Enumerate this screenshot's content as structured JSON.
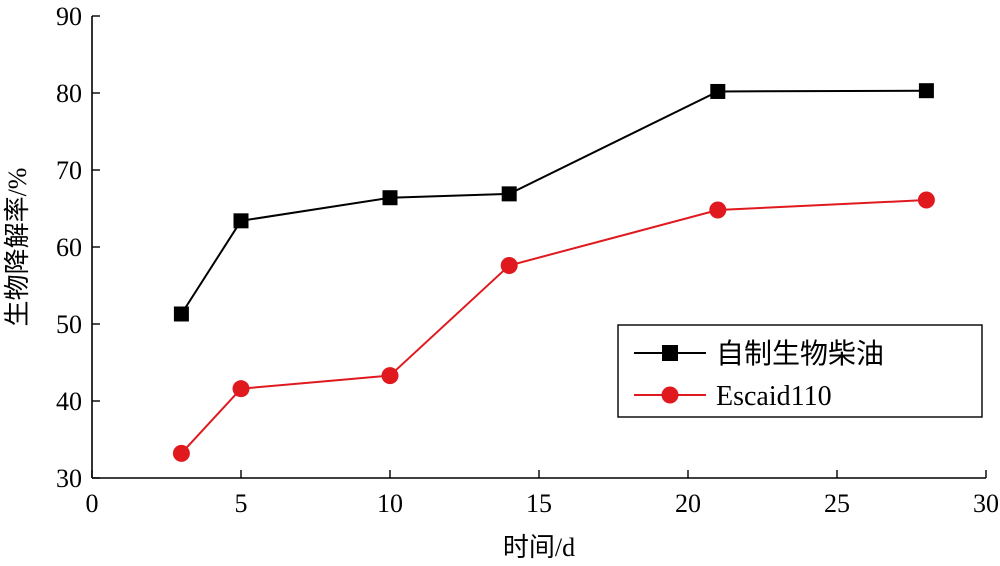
{
  "chart_data": {
    "type": "line",
    "title": "",
    "xlabel": "时间/d",
    "ylabel": "生物降解率/%",
    "xlim": [
      0,
      30
    ],
    "ylim": [
      30,
      90
    ],
    "xticks": [
      0,
      5,
      10,
      15,
      20,
      25,
      30
    ],
    "yticks": [
      30,
      40,
      50,
      60,
      70,
      80,
      90
    ],
    "x": [
      3,
      5,
      10,
      14,
      21,
      28
    ],
    "grid": false,
    "legend_position": "lower-right",
    "series": [
      {
        "name": "自制生物柴油",
        "values": [
          51.3,
          63.4,
          66.4,
          66.9,
          80.2,
          80.3
        ],
        "color": "#000000",
        "marker": "square"
      },
      {
        "name": "Escaid110",
        "values": [
          33.2,
          41.6,
          43.3,
          57.6,
          64.8,
          66.1
        ],
        "color": "#e0191f",
        "marker": "circle"
      }
    ]
  }
}
